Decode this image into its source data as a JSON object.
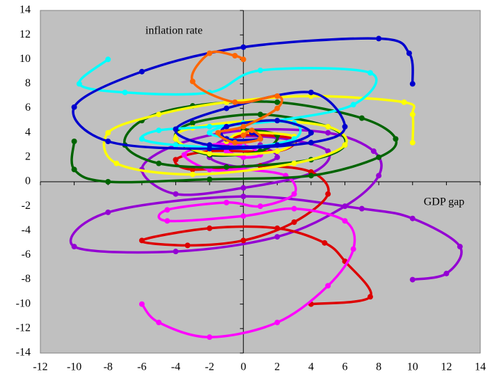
{
  "chart_data": {
    "type": "scatter",
    "smooth": true,
    "y_label": "inflation rate",
    "x_label": "GDP gap",
    "xlim": [
      -12,
      14
    ],
    "ylim": [
      -14,
      14
    ],
    "xticks": [
      -12,
      -10,
      -8,
      -6,
      -4,
      -2,
      0,
      2,
      4,
      6,
      8,
      10,
      12,
      14
    ],
    "yticks": [
      -14,
      -12,
      -10,
      -8,
      -6,
      -4,
      -2,
      0,
      2,
      4,
      6,
      8,
      10,
      12,
      14
    ],
    "background": "#c0c0c0",
    "series": [
      {
        "color": "#9400d3",
        "x": [
          10,
          12,
          12.8,
          10,
          7,
          0,
          -8,
          -10,
          -4,
          2,
          6,
          8,
          7.7,
          5,
          0,
          -4,
          -6,
          -4,
          0,
          4,
          5,
          2,
          -1,
          -2,
          0,
          2,
          1
        ],
        "values": [
          -8,
          -7.5,
          -5.3,
          -3,
          -2.2,
          -1.2,
          -2.5,
          -5.3,
          -5.7,
          -4.5,
          -2,
          0.5,
          2.5,
          4,
          4.2,
          3,
          1,
          -1,
          -0.5,
          0.7,
          2.5,
          3.6,
          3.5,
          2,
          1.2,
          2,
          3
        ]
      },
      {
        "color": "#dd0000",
        "x": [
          4,
          7.5,
          6,
          4.8,
          2,
          -2,
          -6,
          -3.3,
          0,
          3,
          5,
          4,
          1,
          -3,
          -4,
          -2,
          2,
          3,
          0,
          -1
        ],
        "values": [
          -10,
          -9.4,
          -6.5,
          -5,
          -3.8,
          -3.8,
          -4.8,
          -5.2,
          -4.8,
          -3.3,
          -1,
          0.8,
          1.3,
          1,
          1.8,
          2.5,
          2.5,
          3.5,
          3.8,
          3
        ]
      },
      {
        "color": "#ff00ff",
        "x": [
          -6,
          -5,
          -2,
          2,
          5,
          6.5,
          6,
          3,
          0,
          -4.5,
          -4.5,
          -1,
          1,
          3,
          2.5,
          0,
          -2,
          -3.5,
          -2,
          0,
          1,
          0,
          -1
        ],
        "values": [
          -10,
          -11.5,
          -12.7,
          -11.5,
          -8.5,
          -5.5,
          -3.2,
          -2.2,
          -2.8,
          -3.2,
          -2.3,
          -1.7,
          -2,
          -1,
          0.5,
          1,
          1,
          2.2,
          3,
          3,
          2.2,
          2,
          2.5
        ]
      },
      {
        "color": "#006400",
        "x": [
          -10,
          -10,
          -8,
          -2,
          4,
          8,
          9,
          7,
          2,
          -3,
          -6,
          -7,
          -5,
          -1,
          4,
          6,
          5,
          1,
          -3,
          -4,
          -2,
          1,
          2,
          0
        ],
        "values": [
          3.3,
          1,
          0,
          0.2,
          0.5,
          2,
          3.5,
          5.2,
          6.5,
          6.2,
          5,
          3,
          1.5,
          1.2,
          1.8,
          3,
          4.5,
          5.5,
          4.8,
          3.5,
          2.2,
          2.5,
          3.8,
          4.3
        ]
      },
      {
        "color": "#ffff00",
        "x": [
          10,
          10,
          9.5,
          4,
          -1,
          -5,
          -8,
          -7.5,
          -3,
          3,
          6,
          5,
          1,
          -3,
          -4,
          -2,
          2,
          3,
          0,
          -1
        ],
        "values": [
          3.2,
          5.5,
          6.5,
          7,
          6.5,
          5.5,
          4,
          1.5,
          0.6,
          1.5,
          3,
          4.5,
          5,
          4.4,
          3.5,
          2.3,
          2.5,
          3.7,
          4,
          3.3
        ]
      },
      {
        "color": "#00ffff",
        "x": [
          -8,
          -9.7,
          -7,
          -2,
          1,
          7.5,
          6.5,
          2,
          -2,
          -5,
          -6,
          -4,
          0,
          3,
          3,
          0,
          -2,
          0
        ],
        "values": [
          10,
          8,
          7.3,
          7.3,
          9.1,
          8.9,
          6.3,
          5,
          4.5,
          4.2,
          3.5,
          3,
          2.8,
          3.5,
          4.8,
          4.8,
          4,
          3.3
        ]
      },
      {
        "color": "#0000cd",
        "x": [
          10,
          9.8,
          8,
          0,
          -6,
          -10,
          -8,
          -2,
          4,
          6,
          4,
          -1,
          -4,
          -2,
          2,
          4,
          2,
          -1,
          -1,
          1,
          0.5
        ],
        "values": [
          8,
          10.5,
          11.7,
          11,
          9,
          6.1,
          3.3,
          2.7,
          3.2,
          4.5,
          7.3,
          6,
          4.3,
          3,
          3,
          4,
          5,
          4.5,
          3.5,
          3.5,
          4
        ]
      },
      {
        "color": "#ff6600",
        "x": [
          0,
          -0.5,
          -2,
          -3,
          -0.5,
          2,
          2,
          0,
          -1.5,
          -0.5,
          1,
          0.5,
          0
        ],
        "values": [
          10,
          10.3,
          10.5,
          8.2,
          6.5,
          7,
          6,
          4.5,
          4,
          3.2,
          3.5,
          4.2,
          3.8
        ]
      }
    ]
  }
}
